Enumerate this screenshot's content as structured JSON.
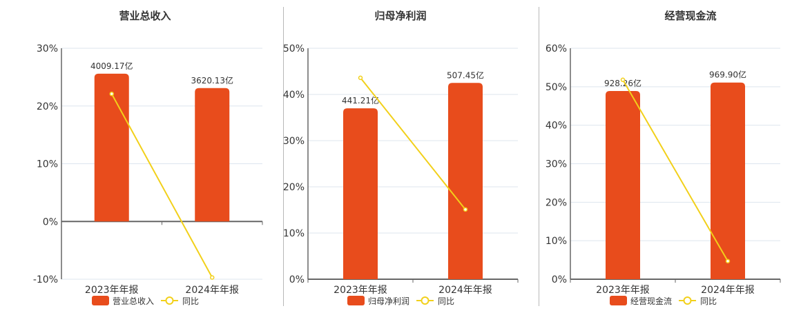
{
  "colors": {
    "bar": "#e84c1c",
    "line": "#f2d01a",
    "grid": "#dde4ee",
    "axis": "#666666",
    "text": "#333333"
  },
  "legend": {
    "line_label": "同比"
  },
  "chart_data": [
    {
      "type": "bar+line",
      "title": "营业总收入",
      "categories": [
        "2023年年报",
        "2024年年报"
      ],
      "bar_series": {
        "name": "营业总收入",
        "labels": [
          "4009.17亿",
          "3620.13亿"
        ],
        "values_yi": [
          4009.17,
          3620.13
        ],
        "plotted_pct": [
          25.6,
          23.1
        ]
      },
      "line_series": {
        "name": "同比",
        "values": [
          22.1,
          -9.7
        ]
      },
      "yaxis": {
        "min": -10,
        "max": 30,
        "ticks": [
          "30%",
          "20%",
          "10%",
          "0%",
          "-10%"
        ],
        "tick_values": [
          30,
          20,
          10,
          0,
          -10
        ]
      },
      "legend_position": "bottom",
      "grid": true
    },
    {
      "type": "bar+line",
      "title": "归母净利润",
      "categories": [
        "2023年年报",
        "2024年年报"
      ],
      "bar_series": {
        "name": "归母净利润",
        "labels": [
          "441.21亿",
          "507.45亿"
        ],
        "values_yi": [
          441.21,
          507.45
        ],
        "plotted_pct": [
          37.0,
          42.5
        ]
      },
      "line_series": {
        "name": "同比",
        "values": [
          43.6,
          15.1
        ]
      },
      "yaxis": {
        "min": 0,
        "max": 50,
        "ticks": [
          "50%",
          "40%",
          "30%",
          "20%",
          "10%",
          "0%"
        ],
        "tick_values": [
          50,
          40,
          30,
          20,
          10,
          0
        ]
      },
      "legend_position": "bottom",
      "grid": true
    },
    {
      "type": "bar+line",
      "title": "经营现金流",
      "categories": [
        "2023年年报",
        "2024年年报"
      ],
      "bar_series": {
        "name": "经营现金流",
        "labels": [
          "928.26亿",
          "969.90亿"
        ],
        "values_yi": [
          928.26,
          969.9
        ],
        "plotted_pct": [
          48.9,
          51.1
        ]
      },
      "line_series": {
        "name": "同比",
        "values": [
          51.8,
          4.7
        ]
      },
      "yaxis": {
        "min": 0,
        "max": 60,
        "ticks": [
          "60%",
          "50%",
          "40%",
          "30%",
          "20%",
          "10%",
          "0%"
        ],
        "tick_values": [
          60,
          50,
          40,
          30,
          20,
          10,
          0
        ]
      },
      "legend_position": "bottom",
      "grid": true
    }
  ]
}
